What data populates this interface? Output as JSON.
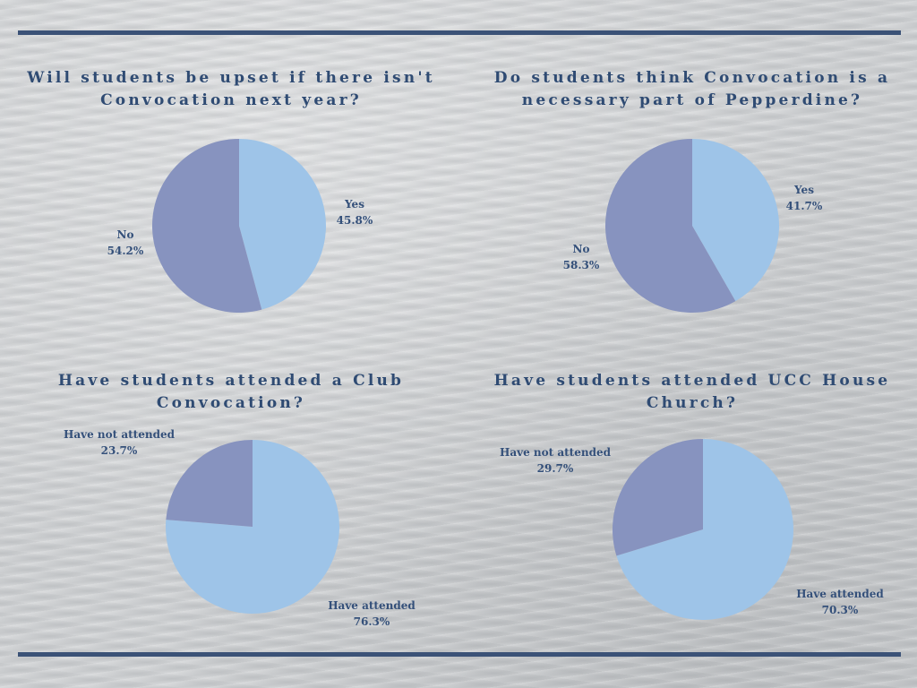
{
  "colors": {
    "rule": "#3b5277",
    "title": "#2f4b73",
    "label": "#34507a",
    "light_slice": "#9ec4e8",
    "dark_slice": "#8793bf"
  },
  "chart_data": [
    {
      "type": "pie",
      "title": "Will students be upset if there isn't Convocation next year?",
      "slices": [
        {
          "label": "Yes",
          "value": 45.8,
          "display": "45.8%",
          "color": "#9ec4e8"
        },
        {
          "label": "No",
          "value": 54.2,
          "display": "54.2%",
          "color": "#8793bf"
        }
      ]
    },
    {
      "type": "pie",
      "title": "Do students think Convocation is a necessary part of Pepperdine?",
      "slices": [
        {
          "label": "Yes",
          "value": 41.7,
          "display": "41.7%",
          "color": "#9ec4e8"
        },
        {
          "label": "No",
          "value": 58.3,
          "display": "58.3%",
          "color": "#8793bf"
        }
      ]
    },
    {
      "type": "pie",
      "title": "Have students attended a Club Convocation?",
      "slices": [
        {
          "label": "Have attended",
          "value": 76.3,
          "display": "76.3%",
          "color": "#9ec4e8"
        },
        {
          "label": "Have not attended",
          "value": 23.7,
          "display": "23.7%",
          "color": "#8793bf"
        }
      ]
    },
    {
      "type": "pie",
      "title": "Have students attended UCC House Church?",
      "slices": [
        {
          "label": "Have attended",
          "value": 70.3,
          "display": "70.3%",
          "color": "#9ec4e8"
        },
        {
          "label": "Have not attended",
          "value": 29.7,
          "display": "29.7%",
          "color": "#8793bf"
        }
      ]
    }
  ]
}
